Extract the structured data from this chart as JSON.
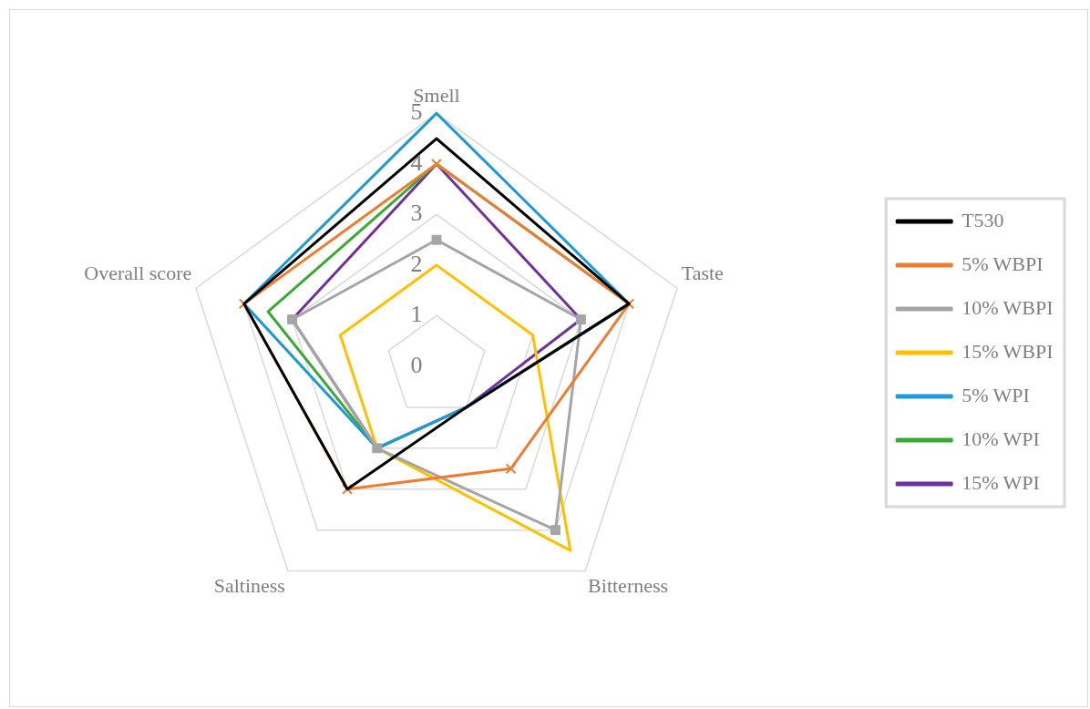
{
  "chart_data": {
    "type": "radar",
    "categories": [
      "Smell",
      "Taste",
      "Bitterness",
      "Saltiness",
      "Overall score"
    ],
    "ylim": [
      0,
      5
    ],
    "yticks": [
      0,
      1,
      2,
      3,
      4,
      5
    ],
    "grid": true,
    "legend": "right",
    "series": [
      {
        "name": "T530",
        "color": "#000000",
        "values": [
          4.5,
          4,
          1,
          3,
          4
        ],
        "marker": "none"
      },
      {
        "name": "5% WBPI",
        "color": "#ed7d31",
        "values": [
          4,
          4,
          2.5,
          3,
          4
        ],
        "marker": "cross"
      },
      {
        "name": "10% WBPI",
        "color": "#a5a5a5",
        "values": [
          2.5,
          3,
          4,
          2,
          3
        ],
        "marker": "square"
      },
      {
        "name": "15% WBPI",
        "color": "#ffc000",
        "values": [
          2,
          2,
          4.5,
          2,
          2
        ],
        "marker": "none"
      },
      {
        "name": "5% WPI",
        "color": "#1f9ad6",
        "values": [
          5,
          4,
          1,
          2,
          4
        ],
        "marker": "none"
      },
      {
        "name": "10% WPI",
        "color": "#3aa935",
        "values": [
          4,
          4,
          1,
          2,
          3.5
        ],
        "marker": "none"
      },
      {
        "name": "15% WPI",
        "color": "#7030a0",
        "values": [
          4,
          3,
          1,
          2,
          3
        ],
        "marker": "none"
      }
    ]
  }
}
